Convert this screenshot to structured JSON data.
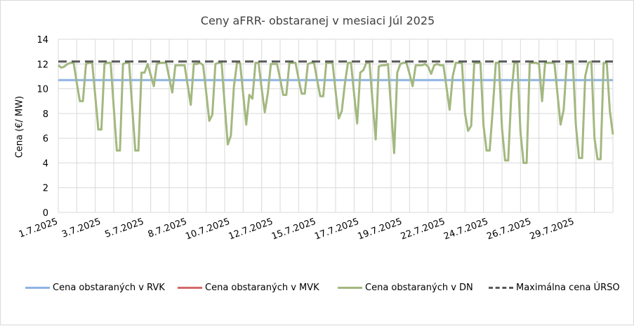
{
  "chart_data": {
    "type": "line",
    "title": "Ceny aFRR- obstaranej v mesiaci Júl 2025",
    "xlabel": "",
    "ylabel": "Cena (€/ MW)",
    "ylim": [
      0,
      14
    ],
    "yticks": [
      0,
      2,
      4,
      6,
      8,
      10,
      12,
      14
    ],
    "xtick_labels": [
      "1.7.2025",
      "3.7.2025",
      "5.7.2025",
      "8.7.2025",
      "10.7.2025",
      "12.7.2025",
      "15.7.2025",
      "17.7.2025",
      "19.7.2025",
      "22.7.2025",
      "24.7.2025",
      "26.7.2025",
      "29.7.2025"
    ],
    "grid": true,
    "legend_position": "bottom",
    "points_per_day": 6,
    "days": 30,
    "series": [
      {
        "name": "Cena obstaraných v RVK",
        "color": "#8eb4e3",
        "style": "solid",
        "values": [
          10.7
        ]
      },
      {
        "name": "Cena obstaraných v MVK",
        "color": "#d46a6a",
        "style": "solid",
        "values": []
      },
      {
        "name": "Cena obstaraných v DN",
        "color": "#a3b87f",
        "style": "solid",
        "values": [
          11.9,
          11.7,
          11.8,
          12.0,
          12.1,
          12.1,
          10.5,
          9.0,
          9.0,
          12.0,
          12.1,
          12.1,
          9.4,
          6.7,
          6.7,
          12.0,
          12.1,
          12.1,
          8.5,
          5.0,
          5.0,
          12.0,
          12.1,
          12.1,
          8.5,
          5.0,
          5.0,
          11.3,
          11.3,
          12.0,
          11.1,
          10.2,
          12.0,
          12.1,
          12.1,
          12.1,
          10.9,
          9.7,
          11.9,
          11.9,
          11.9,
          11.9,
          10.3,
          8.7,
          12.0,
          12.0,
          12.1,
          11.9,
          9.7,
          7.4,
          7.9,
          12.0,
          12.1,
          12.1,
          8.7,
          5.5,
          6.2,
          10.2,
          12.1,
          12.1,
          9.6,
          7.1,
          9.5,
          9.2,
          12.1,
          12.1,
          10.0,
          8.1,
          9.6,
          12.0,
          12.0,
          12.0,
          10.8,
          9.5,
          9.5,
          12.1,
          12.1,
          12.1,
          10.8,
          9.6,
          9.6,
          12.0,
          12.1,
          12.1,
          10.7,
          9.4,
          9.4,
          12.1,
          12.1,
          12.1,
          9.8,
          7.6,
          8.2,
          10.4,
          12.1,
          12.1,
          9.6,
          7.2,
          11.3,
          11.5,
          12.1,
          12.1,
          8.9,
          5.9,
          11.8,
          11.9,
          11.9,
          12.0,
          8.4,
          4.8,
          11.3,
          12.0,
          12.1,
          12.1,
          11.2,
          10.2,
          11.9,
          11.9,
          11.9,
          12.0,
          11.8,
          11.2,
          11.9,
          12.0,
          11.9,
          11.9,
          10.1,
          8.3,
          11.0,
          12.1,
          12.1,
          12.1,
          8.0,
          6.6,
          7.0,
          12.1,
          12.1,
          12.1,
          7.0,
          5.0,
          5.0,
          8.3,
          12.1,
          12.1,
          6.8,
          4.2,
          4.2,
          9.5,
          12.1,
          12.1,
          6.5,
          4.0,
          4.0,
          12.1,
          12.1,
          12.1,
          12.0,
          9.0,
          12.1,
          12.1,
          12.1,
          12.1,
          9.6,
          7.1,
          8.3,
          12.1,
          12.1,
          12.1,
          7.0,
          4.4,
          4.4,
          11.0,
          12.1,
          12.2,
          6.0,
          4.3,
          4.3,
          12.1,
          12.1,
          8.2,
          6.3
        ]
      },
      {
        "name": "Maximálna cena ÚRSO",
        "color": "#595959",
        "style": "dashed",
        "values": [
          12.2
        ]
      }
    ]
  }
}
